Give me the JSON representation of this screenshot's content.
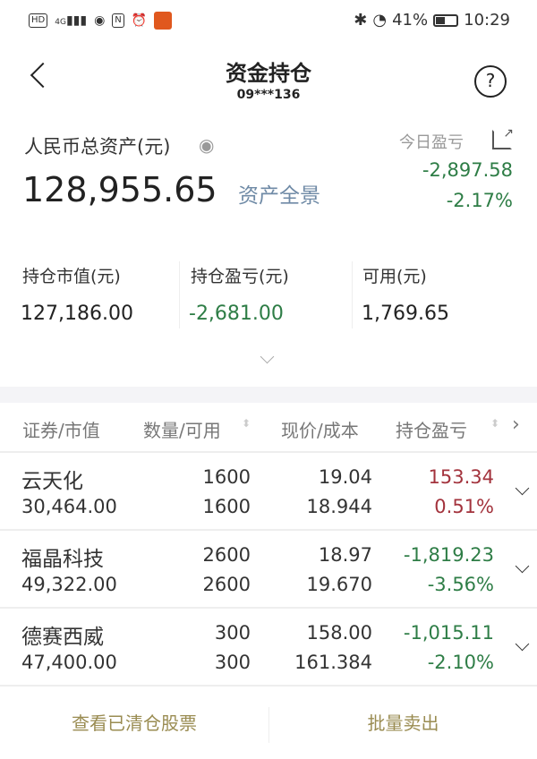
{
  "status_bar": {
    "left_icons": [
      "hd-icon",
      "4g-signal-icon",
      "eye-icon",
      "nfc-icon",
      "alarm-icon",
      "app-icon"
    ],
    "hd": "HD",
    "net": "4G",
    "battery": "41%",
    "battery_level": 0.41,
    "time": "10:29"
  },
  "header": {
    "title": "资金持仓",
    "account": "09***136"
  },
  "summary": {
    "total_label": "人民币总资产(元)",
    "total_value": "128,955.65",
    "overview_link": "资产全景",
    "today_label": "今日盈亏",
    "today_pl": "-2,897.58",
    "today_pct": "-2.17%"
  },
  "stats": [
    {
      "label": "持仓市值(元)",
      "value": "127,186.00"
    },
    {
      "label": "持仓盈亏(元)",
      "value": "-2,681.00"
    },
    {
      "label": "可用(元)",
      "value": "1,769.65"
    }
  ],
  "table": {
    "headers": [
      "证券/市值",
      "数量/可用",
      "现价/成本",
      "持仓盈亏"
    ],
    "rows": [
      {
        "name": "云天化",
        "market_value": "30,464.00",
        "qty": "1600",
        "avail": "1600",
        "price": "19.04",
        "cost": "18.944",
        "pl": "153.34",
        "pl_pct": "0.51%",
        "dir": "up"
      },
      {
        "name": "福晶科技",
        "market_value": "49,322.00",
        "qty": "2600",
        "avail": "2600",
        "price": "18.97",
        "cost": "19.670",
        "pl": "-1,819.23",
        "pl_pct": "-3.56%",
        "dir": "down"
      },
      {
        "name": "德赛西威",
        "market_value": "47,400.00",
        "qty": "300",
        "avail": "300",
        "price": "158.00",
        "cost": "161.384",
        "pl": "-1,015.11",
        "pl_pct": "-2.10%",
        "dir": "down"
      }
    ]
  },
  "footer": {
    "cleared": "查看已清仓股票",
    "batch_sell": "批量卖出"
  },
  "colors": {
    "up": "#a3333d",
    "down": "#2e7d46",
    "link": "#6f8aa6",
    "footer": "#9a8c52"
  }
}
